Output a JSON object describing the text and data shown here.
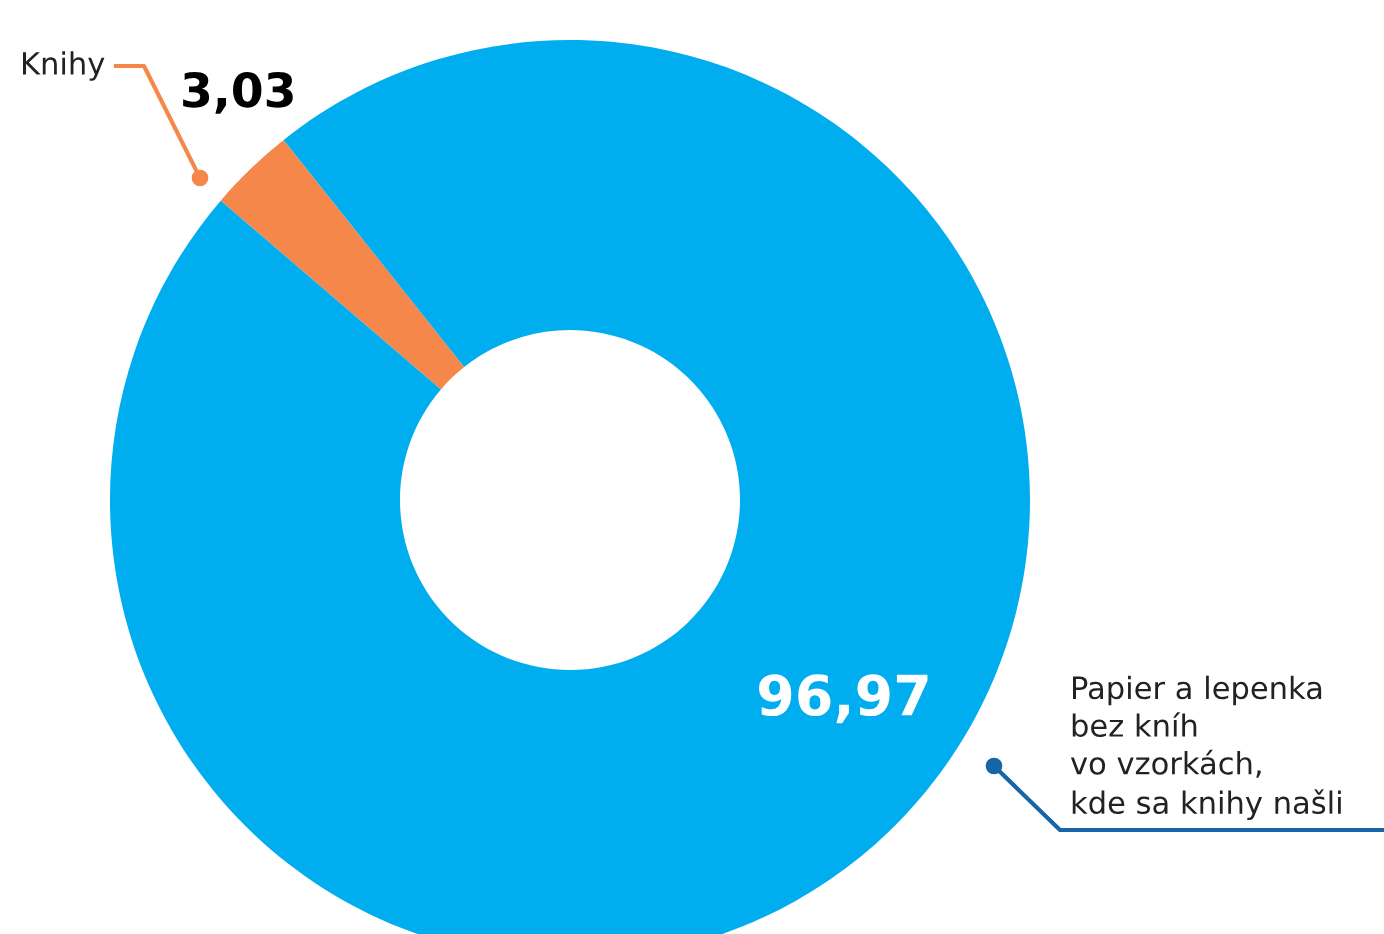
{
  "chart_data": {
    "type": "donut",
    "categories": [
      "Knihy",
      "Papier a lepenka\nbez kníh\nvo vzorkách,\nkde sa knihy našli"
    ],
    "values": [
      3.03,
      96.97
    ],
    "colors": [
      "#f5874a",
      "#00aeef"
    ],
    "value_labels": [
      "3,03",
      "96,97"
    ],
    "legend": false
  }
}
